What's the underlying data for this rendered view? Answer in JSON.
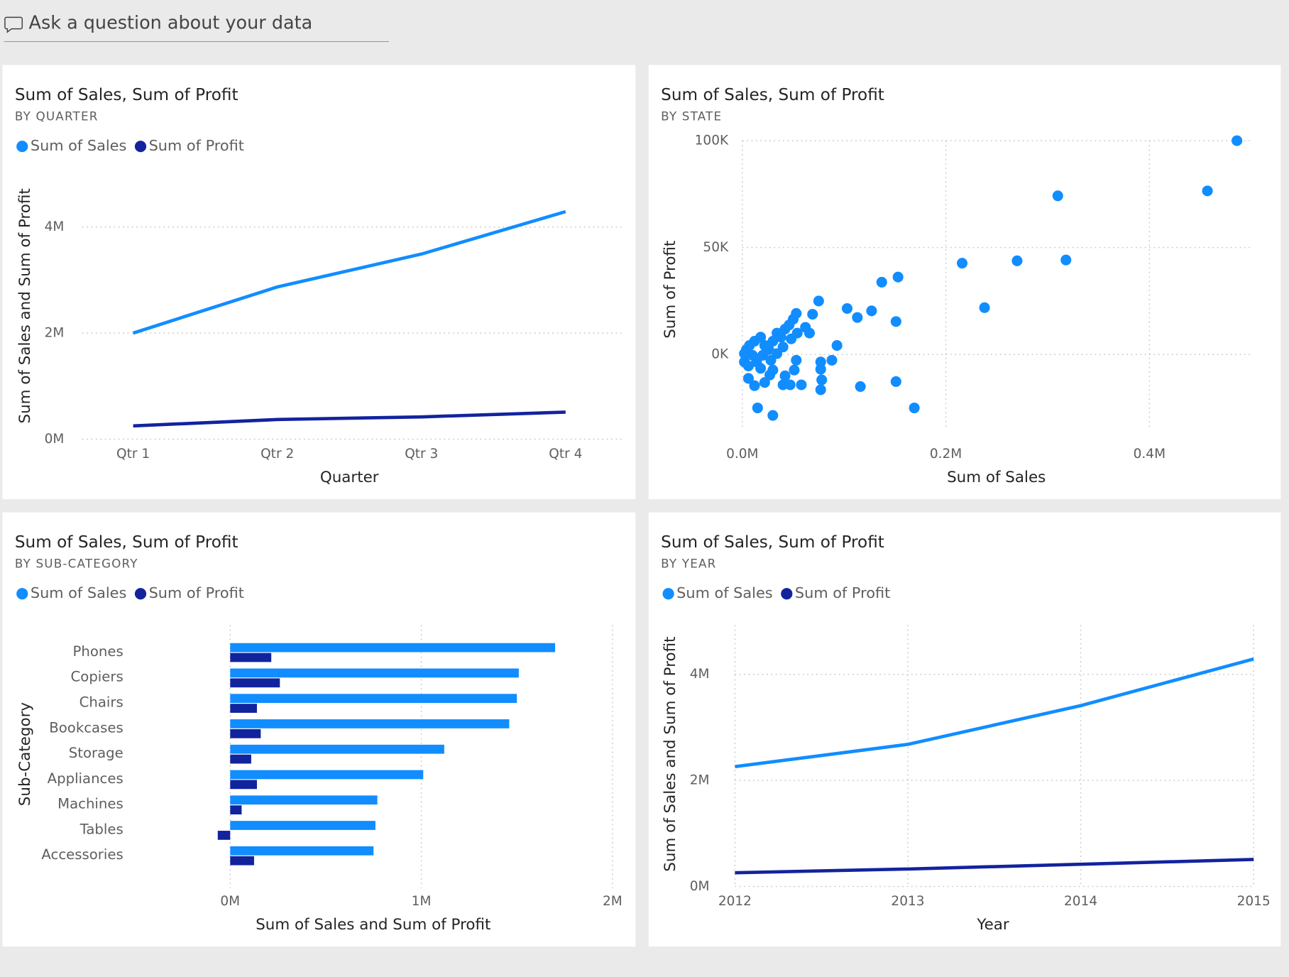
{
  "qna": {
    "placeholder": "Ask a question about your data"
  },
  "chart_data": [
    {
      "type": "line",
      "title": "Sum of Sales, Sum of Profit",
      "subtitle": "BY QUARTER",
      "x_label": "Quarter",
      "y_label": "Sum of Sales and Sum of Profit",
      "categories": [
        "Qtr 1",
        "Qtr 2",
        "Qtr 3",
        "Qtr 4"
      ],
      "series": [
        {
          "name": "Sum of Sales",
          "color": "#118dff",
          "values": [
            2000000,
            2870000,
            3490000,
            4290000
          ]
        },
        {
          "name": "Sum of Profit",
          "color": "#12239e",
          "values": [
            250000,
            370000,
            420000,
            510000
          ]
        }
      ],
      "ylim": [
        0,
        5000000
      ],
      "yticks": [
        {
          "value": 0,
          "label": "0M"
        },
        {
          "value": 2000000,
          "label": "2M"
        },
        {
          "value": 4000000,
          "label": "4M"
        }
      ],
      "grid": true,
      "legend": "top-left"
    },
    {
      "type": "scatter",
      "title": "Sum of Sales, Sum of Profit",
      "subtitle": "BY STATE",
      "x_label": "Sum of Sales",
      "y_label": "Sum of Profit",
      "color": "#118dff",
      "x": [
        486000,
        310000,
        457000,
        216000,
        270000,
        318000,
        238000,
        137000,
        153000,
        151000,
        151000,
        169000,
        116000,
        127000,
        113000,
        103000,
        93000,
        88000,
        77000,
        77000,
        78000,
        77000,
        75000,
        69000,
        53000,
        50000,
        58000,
        47000,
        40000,
        30000,
        15000,
        42000,
        53000,
        51000,
        27000,
        12000,
        22000,
        6000,
        4000,
        7000,
        12000,
        18000,
        22000,
        26000,
        30000,
        34000,
        38000,
        42000,
        46000,
        2000,
        6000,
        14000,
        20000,
        28000,
        34000,
        40000,
        48000,
        54000,
        62000,
        66000,
        2000,
        10000,
        18000,
        30000
      ],
      "values": [
        100000,
        74200,
        76500,
        42700,
        43800,
        44200,
        21900,
        33800,
        36200,
        15400,
        -12700,
        -25000,
        -15000,
        20400,
        17300,
        21500,
        4200,
        -2700,
        -3500,
        -6900,
        -11900,
        -16500,
        25000,
        18800,
        19200,
        16500,
        -14200,
        -14200,
        -14200,
        -28500,
        -25000,
        -10000,
        -2700,
        -7300,
        -9600,
        -14600,
        -13100,
        -11200,
        2300,
        4200,
        6200,
        8100,
        4200,
        2300,
        6200,
        10000,
        8100,
        11900,
        13800,
        -3500,
        -5400,
        -3500,
        -400,
        -2700,
        400,
        3500,
        7300,
        10000,
        12700,
        10000,
        400,
        -400,
        -6500,
        -7300
      ],
      "xlim": [
        0,
        500000
      ],
      "xticks": [
        {
          "value": 0,
          "label": "0.0M"
        },
        {
          "value": 200000,
          "label": "0.2M"
        },
        {
          "value": 400000,
          "label": "0.4M"
        }
      ],
      "ylim": [
        -35000,
        100000
      ],
      "yticks": [
        {
          "value": 0,
          "label": "0K"
        },
        {
          "value": 50000,
          "label": "50K"
        },
        {
          "value": 100000,
          "label": "100K"
        }
      ],
      "grid": true
    },
    {
      "type": "bar",
      "orientation": "horizontal",
      "title": "Sum of Sales, Sum of Profit",
      "subtitle": "BY SUB-CATEGORY",
      "x_label": "Sum of Sales and Sum of Profit",
      "y_label": "Sub-Category",
      "categories": [
        "Phones",
        "Copiers",
        "Chairs",
        "Bookcases",
        "Storage",
        "Appliances",
        "Machines",
        "Tables",
        "Accessories"
      ],
      "series": [
        {
          "name": "Sum of Sales",
          "color": "#118dff",
          "values": [
            1700000,
            1510000,
            1500000,
            1460000,
            1120000,
            1010000,
            770000,
            760000,
            750000
          ]
        },
        {
          "name": "Sum of Profit",
          "color": "#12239e",
          "values": [
            215000,
            260000,
            140000,
            160000,
            110000,
            140000,
            60000,
            -65000,
            125000
          ]
        }
      ],
      "xlim": [
        -100000,
        2000000
      ],
      "xticks": [
        {
          "value": 0,
          "label": "0M"
        },
        {
          "value": 1000000,
          "label": "1M"
        },
        {
          "value": 2000000,
          "label": "2M"
        }
      ],
      "grid": true,
      "legend": "top-left"
    },
    {
      "type": "line",
      "title": "Sum of Sales, Sum of Profit",
      "subtitle": "BY YEAR",
      "x_label": "Year",
      "y_label": "Sum of Sales and Sum of Profit",
      "x": [
        2012,
        2013,
        2014,
        2015
      ],
      "series": [
        {
          "name": "Sum of Sales",
          "color": "#118dff",
          "values": [
            2260000,
            2680000,
            3410000,
            4290000
          ]
        },
        {
          "name": "Sum of Profit",
          "color": "#12239e",
          "values": [
            260000,
            330000,
            420000,
            510000
          ]
        }
      ],
      "xlim": [
        2012,
        2015
      ],
      "xticks": [
        2012,
        2013,
        2014,
        2015
      ],
      "ylim": [
        0,
        5000000
      ],
      "yticks": [
        {
          "value": 0,
          "label": "0M"
        },
        {
          "value": 2000000,
          "label": "2M"
        },
        {
          "value": 4000000,
          "label": "4M"
        }
      ],
      "grid": true,
      "legend": "top-left"
    }
  ]
}
